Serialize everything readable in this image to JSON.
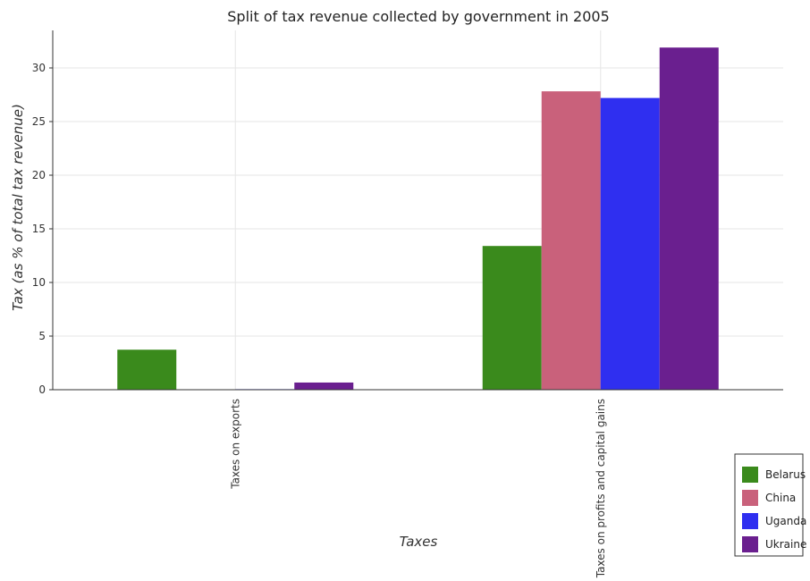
{
  "chart_data": {
    "type": "bar",
    "title": "Split of tax revenue collected by government in 2005",
    "xlabel": "Taxes",
    "ylabel": "Tax (as % of total tax revenue)",
    "categories": [
      "Taxes on exports",
      "Taxes on profits and capital gains"
    ],
    "series": [
      {
        "name": "Belarus",
        "color": "#3a8a1c",
        "values": [
          3.73,
          13.4
        ]
      },
      {
        "name": "China",
        "color": "#c9617b",
        "values": [
          0.0,
          27.82
        ]
      },
      {
        "name": "Uganda",
        "color": "#2f2ff0",
        "values": [
          0.05,
          27.2
        ]
      },
      {
        "name": "Ukraine",
        "color": "#6a1f8f",
        "values": [
          0.67,
          31.9
        ]
      }
    ],
    "ylim": [
      0,
      33.5
    ],
    "yticks": [
      0,
      5,
      10,
      15,
      20,
      25,
      30
    ],
    "grid": true,
    "legend_position": "bottom-right"
  }
}
